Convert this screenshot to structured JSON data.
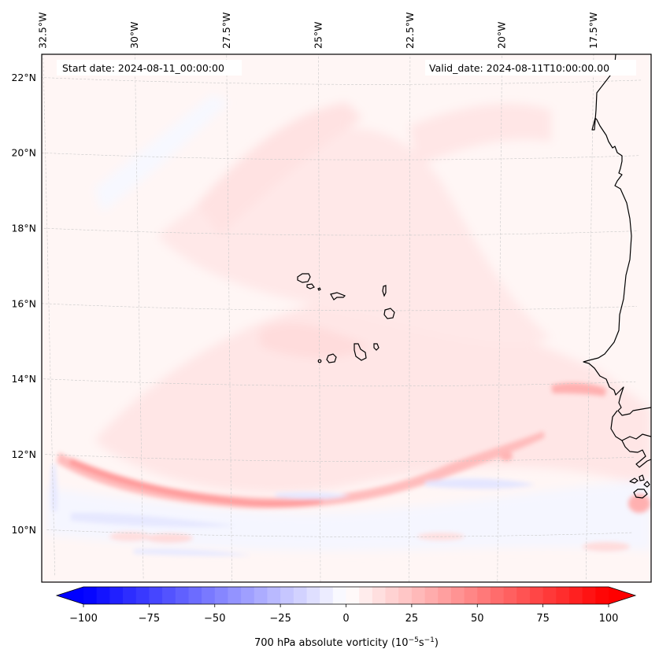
{
  "map": {
    "variable": "700 hPa absolute vorticity",
    "units_base": "(10",
    "units_exp1": "−5",
    "units_mid": "s",
    "units_exp2": "−1",
    "units_close": ")",
    "start_date_label": "Start date: 2024-08-11_00:00:00",
    "valid_date_label": "Valid_date: 2024-08-11T10:00:00.00",
    "extent": {
      "lon_min": -32.7,
      "lon_max": -15.8,
      "lat_min": 8.8,
      "lat_max": 22.8
    },
    "lon_ticks": [
      {
        "value": -32.5,
        "label": "32.5°W"
      },
      {
        "value": -30,
        "label": "30°W"
      },
      {
        "value": -27.5,
        "label": "27.5°W"
      },
      {
        "value": -25,
        "label": "25°W"
      },
      {
        "value": -22.5,
        "label": "22.5°W"
      },
      {
        "value": -20,
        "label": "20°W"
      },
      {
        "value": -17.5,
        "label": "17.5°W"
      }
    ],
    "lat_ticks": [
      {
        "value": 22,
        "label": "22°N"
      },
      {
        "value": 20,
        "label": "20°N"
      },
      {
        "value": 18,
        "label": "18°N"
      },
      {
        "value": 16,
        "label": "16°N"
      },
      {
        "value": 14,
        "label": "14°N"
      },
      {
        "value": 12,
        "label": "12°N"
      },
      {
        "value": 10,
        "label": "10°N"
      }
    ],
    "features": {
      "islands": "Cape Verde",
      "coastline": "West Africa (Mauritania, Senegal, Gambia, Guinea-Bissau)",
      "vorticity_band": "Positive vorticity band along ~11–12°N, max near 31–22°W"
    }
  },
  "colorbar": {
    "min": -100,
    "max": 100,
    "step": 5,
    "extend": "both",
    "colormap": "bwr",
    "ticks": [
      {
        "value": -100,
        "label": "−100"
      },
      {
        "value": -75,
        "label": "−75"
      },
      {
        "value": -50,
        "label": "−50"
      },
      {
        "value": -25,
        "label": "−25"
      },
      {
        "value": 0,
        "label": "0"
      },
      {
        "value": 25,
        "label": "25"
      },
      {
        "value": 50,
        "label": "50"
      },
      {
        "value": 75,
        "label": "75"
      },
      {
        "value": 100,
        "label": "100"
      }
    ],
    "colors": {
      "low": "#0000ff",
      "mid": "#ffffff",
      "high": "#ff0000"
    }
  }
}
